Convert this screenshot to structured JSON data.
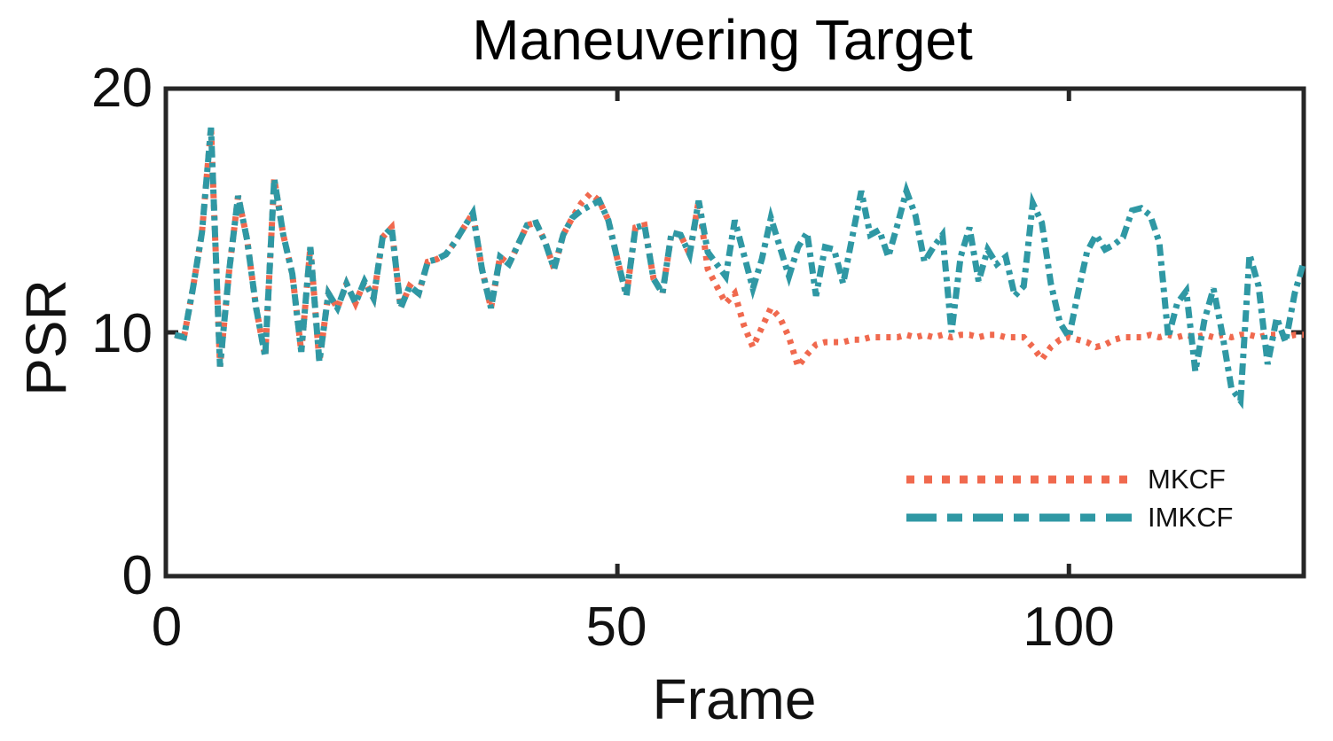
{
  "chart_data": {
    "type": "line",
    "title": "Maneuvering Target",
    "xlabel": "Frame",
    "ylabel": "PSR",
    "xlim": [
      0,
      126
    ],
    "ylim": [
      0,
      20
    ],
    "xticks": [
      0,
      50,
      100
    ],
    "yticks": [
      0,
      10,
      20
    ],
    "xtick_labels": [
      "0",
      "50",
      "100"
    ],
    "ytick_labels": [
      "0",
      "10",
      "20"
    ],
    "grid": false,
    "legend_position": "inside-lower-right",
    "axis_color": "#262626",
    "x_start": 1,
    "series": [
      {
        "name": "MKCF",
        "color": "#F0694E",
        "line_style": "dotted",
        "dash": "5 7",
        "legend_dash": "9 11",
        "width": 7,
        "values": [
          9.9,
          9.8,
          11.8,
          14.1,
          18.4,
          8.6,
          12.5,
          15.6,
          13.8,
          11.0,
          9.0,
          16.3,
          14.0,
          12.4,
          9.2,
          13.5,
          8.8,
          11.6,
          11.0,
          12.0,
          11.2,
          12.1,
          11.4,
          13.9,
          14.3,
          11.0,
          11.9,
          11.6,
          12.9,
          13.0,
          13.2,
          13.7,
          14.3,
          14.9,
          12.6,
          11.0,
          13.1,
          12.8,
          13.6,
          14.4,
          14.5,
          13.7,
          12.6,
          14.0,
          14.7,
          15.3,
          15.7,
          15.4,
          14.6,
          13.0,
          11.5,
          14.3,
          14.4,
          12.2,
          11.6,
          14.1,
          14.0,
          13.2,
          15.4,
          12.6,
          11.9,
          11.2,
          11.6,
          10.3,
          9.4,
          10.2,
          11.0,
          10.6,
          9.8,
          8.6,
          9.1,
          9.5,
          9.6,
          9.6,
          9.6,
          9.7,
          9.7,
          9.8,
          9.8,
          9.8,
          9.8,
          9.9,
          9.8,
          9.9,
          9.8,
          9.9,
          9.8,
          9.9,
          9.9,
          9.8,
          9.9,
          9.9,
          9.8,
          9.8,
          9.8,
          9.4,
          8.9,
          9.4,
          9.7,
          9.8,
          9.7,
          9.6,
          9.4,
          9.5,
          9.7,
          9.8,
          9.8,
          9.8,
          9.9,
          9.8,
          9.9,
          9.8,
          9.9,
          9.8,
          9.9,
          9.8,
          9.9,
          9.8,
          9.9,
          9.9,
          9.8,
          9.9,
          9.9,
          9.8,
          9.9,
          9.9
        ]
      },
      {
        "name": "IMKCF",
        "color": "#2F98A4",
        "line_style": "dash-dot",
        "dash": "13 6 5 6",
        "legend_dash": "34 12 17 12",
        "width": 7,
        "values": [
          9.9,
          9.8,
          11.8,
          14.1,
          18.4,
          8.6,
          12.5,
          15.6,
          13.8,
          11.0,
          9.0,
          16.3,
          14.0,
          12.4,
          9.2,
          13.5,
          8.8,
          11.6,
          11.0,
          12.0,
          11.2,
          12.1,
          11.4,
          13.9,
          14.3,
          11.0,
          11.9,
          11.6,
          12.9,
          13.0,
          13.2,
          13.7,
          14.3,
          14.9,
          12.6,
          11.0,
          13.1,
          12.8,
          13.6,
          14.4,
          14.5,
          13.7,
          12.6,
          14.0,
          14.7,
          15.0,
          15.2,
          15.4,
          14.6,
          13.0,
          11.5,
          14.3,
          14.4,
          12.2,
          11.6,
          14.1,
          14.0,
          13.2,
          15.4,
          13.3,
          12.8,
          12.3,
          14.6,
          13.2,
          11.8,
          13.0,
          14.7,
          13.5,
          12.3,
          13.5,
          14.1,
          11.5,
          13.5,
          13.4,
          12.0,
          13.9,
          15.8,
          14.0,
          14.2,
          13.1,
          14.4,
          15.8,
          14.8,
          12.9,
          13.5,
          14.0,
          10.0,
          13.1,
          14.3,
          12.1,
          13.4,
          12.8,
          13.1,
          11.5,
          11.9,
          15.3,
          14.5,
          12.0,
          10.4,
          9.8,
          11.6,
          13.3,
          14.0,
          13.4,
          13.6,
          13.9,
          15.0,
          15.1,
          14.8,
          13.7,
          9.8,
          11.2,
          11.7,
          8.4,
          10.5,
          11.8,
          9.9,
          7.7,
          7.2,
          13.2,
          11.9,
          8.7,
          10.6,
          9.6,
          11.6,
          12.9
        ]
      }
    ]
  }
}
